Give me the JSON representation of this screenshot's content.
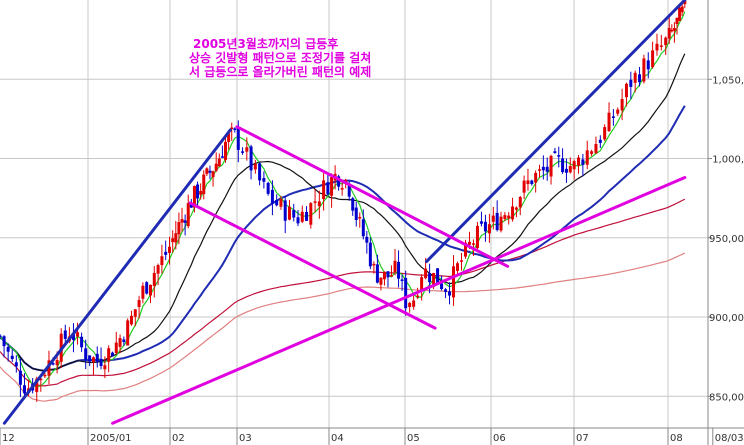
{
  "chart_data": {
    "type": "candlestick",
    "title": "",
    "xlabel": "",
    "ylabel": "",
    "ylim": [
      830,
      1100
    ],
    "grid": true,
    "x_ticks": [
      {
        "label": "12",
        "month": 0
      },
      {
        "label": "2005/01",
        "month": 1
      },
      {
        "label": "02",
        "month": 2
      },
      {
        "label": "03",
        "month": 3
      },
      {
        "label": "04",
        "month": 4
      },
      {
        "label": "05",
        "month": 5
      },
      {
        "label": "06",
        "month": 6
      },
      {
        "label": "07",
        "month": 7
      },
      {
        "label": "08",
        "month": 8
      },
      {
        "label": "08/03",
        "month": 8.8
      }
    ],
    "y_ticks": [
      {
        "label": "850,00",
        "value": 850
      },
      {
        "label": "900,00",
        "value": 900
      },
      {
        "label": "950,00",
        "value": 950
      },
      {
        "label": "1,000,",
        "value": 1000
      },
      {
        "label": "1,050,",
        "value": 1050
      }
    ],
    "annotation": [
      "2005년3월초까지의 급등후",
      "상승 깃발형 패턴으로 조정기를 걸쳐",
      "서 급등으로 올라가버린 패턴의 예제"
    ],
    "price_path": [
      [
        0.0,
        888
      ],
      [
        0.15,
        870
      ],
      [
        0.3,
        855
      ],
      [
        0.45,
        862
      ],
      [
        0.6,
        875
      ],
      [
        0.8,
        892
      ],
      [
        0.95,
        878
      ],
      [
        1.1,
        872
      ],
      [
        1.3,
        880
      ],
      [
        1.5,
        895
      ],
      [
        1.65,
        915
      ],
      [
        1.8,
        928
      ],
      [
        1.95,
        940
      ],
      [
        2.1,
        955
      ],
      [
        2.3,
        972
      ],
      [
        2.5,
        985
      ],
      [
        2.7,
        998
      ],
      [
        2.85,
        1012
      ],
      [
        2.95,
        1015
      ],
      [
        3.05,
        1008
      ],
      [
        3.2,
        990
      ],
      [
        3.35,
        975
      ],
      [
        3.5,
        968
      ],
      [
        3.65,
        962
      ],
      [
        3.8,
        970
      ],
      [
        3.95,
        982
      ],
      [
        4.1,
        990
      ],
      [
        4.25,
        985
      ],
      [
        4.35,
        965
      ],
      [
        4.5,
        945
      ],
      [
        4.6,
        928
      ],
      [
        4.75,
        925
      ],
      [
        4.9,
        930
      ],
      [
        5.0,
        910
      ],
      [
        5.1,
        912
      ],
      [
        5.2,
        930
      ],
      [
        5.35,
        925
      ],
      [
        5.5,
        918
      ],
      [
        5.6,
        930
      ],
      [
        5.75,
        945
      ],
      [
        5.9,
        955
      ],
      [
        6.05,
        960
      ],
      [
        6.2,
        968
      ],
      [
        6.35,
        978
      ],
      [
        6.5,
        988
      ],
      [
        6.65,
        992
      ],
      [
        6.8,
        998
      ],
      [
        7.0,
        995
      ],
      [
        7.15,
        1005
      ],
      [
        7.3,
        1015
      ],
      [
        7.45,
        1030
      ],
      [
        7.6,
        1048
      ],
      [
        7.8,
        1062
      ],
      [
        8.0,
        1075
      ],
      [
        8.2,
        1088
      ],
      [
        8.3,
        1095
      ]
    ],
    "moving_averages": [
      {
        "color": "#22cc22",
        "period": 5
      },
      {
        "color": "#111111",
        "period": 20
      },
      {
        "color": "#1f2bb3",
        "period": 40
      },
      {
        "color": "#c0103a",
        "period": 120
      },
      {
        "color": "#e08080",
        "period": 200
      }
    ],
    "trendlines": [
      {
        "color": "#1f2bb3",
        "points": [
          [
            0.05,
            833
          ],
          [
            2.9,
            1018
          ]
        ]
      },
      {
        "color": "#1f2bb3",
        "points": [
          [
            5.25,
            935
          ],
          [
            8.3,
            1100
          ]
        ]
      },
      {
        "color": "#e000e0",
        "points": [
          [
            3.0,
            1020
          ],
          [
            6.2,
            932
          ]
        ]
      },
      {
        "color": "#e000e0",
        "points": [
          [
            2.3,
            972
          ],
          [
            5.35,
            893
          ]
        ]
      },
      {
        "color": "#e000e0",
        "points": [
          [
            1.3,
            833
          ],
          [
            8.3,
            988
          ]
        ]
      }
    ],
    "colors": {
      "up": "#e00000",
      "down": "#0000cc",
      "grid": "#c8c8c8",
      "axis": "#888888",
      "annotation": "#e000e0"
    }
  }
}
